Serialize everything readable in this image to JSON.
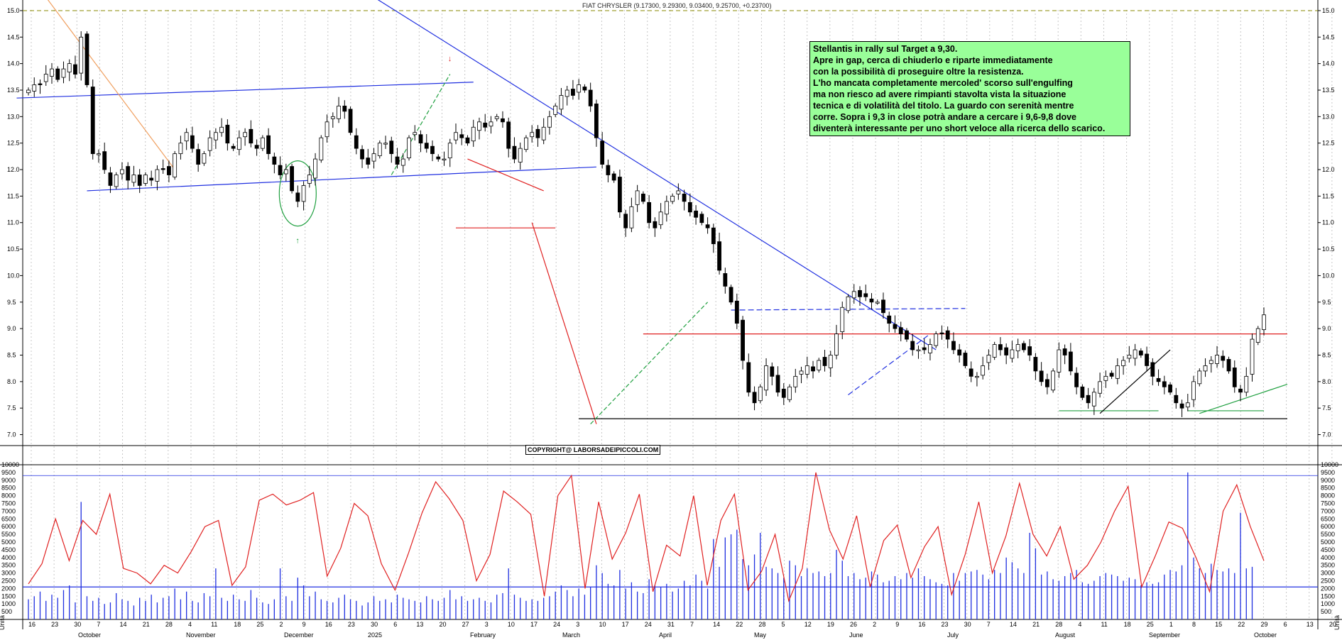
{
  "chart_data": {
    "type": "candlestick",
    "title": "FIAT CHRYSLER (9.17300, 9.29300, 9.03400, 9.25700, +0.23700)",
    "instrument": "FIAT CHRYSLER",
    "last_bar": {
      "open": 9.173,
      "high": 9.293,
      "low": 9.034,
      "close": 9.257,
      "change": 0.237
    },
    "price_axis": {
      "ylim": [
        6.9,
        15.2
      ],
      "ticks": [
        "7.0",
        "7.5",
        "8.0",
        "8.5",
        "9.0",
        "9.5",
        "10.0",
        "10.5",
        "11.0",
        "11.5",
        "12.0",
        "12.5",
        "13.0",
        "13.5",
        "14.0",
        "14.5",
        "15.0"
      ]
    },
    "volume_axis": {
      "ylim": [
        0,
        10000
      ],
      "ticks": [
        "500",
        "1000",
        "1500",
        "2000",
        "2500",
        "3000",
        "3500",
        "4000",
        "4500",
        "5000",
        "5500",
        "6000",
        "6500",
        "7000",
        "7500",
        "8000",
        "8500",
        "9000",
        "9500",
        "10000"
      ],
      "unit_label": "Unità"
    },
    "x_axis": {
      "day_ticks": [
        "16",
        "23",
        "30",
        "7",
        "14",
        "21",
        "28",
        "4",
        "11",
        "18",
        "25",
        "2",
        "9",
        "16",
        "23",
        "30",
        "6",
        "13",
        "20",
        "27",
        "3",
        "10",
        "17",
        "24",
        "3",
        "10",
        "17",
        "24",
        "31",
        "7",
        "14",
        "22",
        "28",
        "5",
        "12",
        "19",
        "26",
        "2",
        "9",
        "16",
        "23",
        "30",
        "7",
        "14",
        "21",
        "28",
        "4",
        "11",
        "18",
        "25",
        "1",
        "8",
        "15",
        "22",
        "29",
        "6",
        "13",
        "20"
      ],
      "month_labels": [
        "October",
        "November",
        "December",
        "2025",
        "February",
        "March",
        "April",
        "May",
        "June",
        "July",
        "August",
        "September",
        "October"
      ]
    },
    "price_series": [
      13.5,
      13.6,
      13.6,
      13.8,
      13.9,
      13.7,
      13.9,
      14.0,
      13.8,
      14.5,
      13.6,
      12.3,
      12.3,
      12.0,
      11.7,
      11.9,
      12.0,
      11.8,
      11.9,
      11.7,
      11.9,
      11.8,
      12.0,
      12.0,
      11.9,
      12.3,
      12.5,
      12.7,
      12.4,
      12.1,
      12.3,
      12.6,
      12.7,
      12.8,
      12.5,
      12.4,
      12.6,
      12.7,
      12.5,
      12.4,
      12.6,
      12.3,
      12.1,
      11.9,
      12.0,
      11.6,
      11.4,
      11.7,
      11.9,
      12.2,
      12.6,
      12.9,
      13.0,
      13.2,
      13.1,
      12.7,
      12.4,
      12.2,
      12.1,
      12.3,
      12.5,
      12.5,
      12.3,
      12.1,
      12.2,
      12.6,
      12.7,
      12.5,
      12.4,
      12.3,
      12.2,
      12.2,
      12.5,
      12.7,
      12.6,
      12.5,
      12.8,
      12.9,
      12.8,
      12.9,
      13.0,
      12.9,
      12.4,
      12.2,
      12.4,
      12.6,
      12.7,
      12.6,
      12.8,
      13.0,
      13.2,
      13.4,
      13.5,
      13.4,
      13.6,
      13.5,
      13.2,
      12.6,
      12.1,
      11.9,
      11.8,
      11.2,
      10.9,
      11.3,
      11.6,
      11.4,
      11.0,
      10.9,
      11.2,
      11.4,
      11.5,
      11.6,
      11.4,
      11.2,
      11.1,
      11.0,
      10.9,
      10.6,
      10.1,
      9.8,
      9.5,
      9.1,
      8.4,
      7.8,
      7.6,
      7.9,
      8.3,
      8.1,
      7.8,
      7.7,
      7.9,
      8.1,
      8.2,
      8.3,
      8.2,
      8.4,
      8.3,
      8.5,
      8.9,
      9.4,
      9.6,
      9.7,
      9.6,
      9.6,
      9.5,
      9.5,
      9.3,
      9.1,
      9.0,
      8.9,
      8.8,
      8.6,
      8.6,
      8.6,
      8.7,
      8.9,
      8.9,
      8.8,
      8.6,
      8.5,
      8.3,
      8.1,
      8.1,
      8.3,
      8.5,
      8.7,
      8.6,
      8.5,
      8.6,
      8.7,
      8.6,
      8.5,
      8.2,
      8.0,
      7.9,
      8.2,
      8.6,
      8.5,
      8.2,
      7.9,
      7.7,
      7.6,
      7.8,
      8.0,
      8.1,
      8.1,
      8.3,
      8.4,
      8.5,
      8.6,
      8.5,
      8.3,
      8.1,
      8.0,
      7.9,
      7.8,
      7.6,
      7.5,
      7.6,
      8.0,
      8.2,
      8.3,
      8.4,
      8.5,
      8.4,
      8.2,
      7.9,
      7.8,
      8.1,
      8.8,
      9.0,
      9.26
    ],
    "volume_series": [
      1300,
      1500,
      1800,
      1200,
      1600,
      1400,
      1900,
      2200,
      1100,
      7600,
      1500,
      1200,
      1400,
      1000,
      1100,
      1700,
      1300,
      1200,
      900,
      1400,
      1200,
      1600,
      1100,
      1400,
      1500,
      2000,
      1300,
      1800,
      1200,
      1100,
      1700,
      1500,
      3300,
      1400,
      1200,
      1600,
      1300,
      1200,
      1900,
      1400,
      1100,
      1000,
      1300,
      3300,
      1500,
      1200,
      2700,
      2200,
      1500,
      1800,
      1300,
      1200,
      1100,
      1400,
      1600,
      1300,
      1200,
      900,
      1100,
      1500,
      1200,
      1300,
      1100,
      1600,
      1400,
      1300,
      1200,
      1100,
      1500,
      1300,
      1200,
      1400,
      1900,
      1300,
      1500,
      1200,
      1300,
      1400,
      1200,
      1100,
      1600,
      1700,
      3300,
      1600,
      1400,
      1200,
      1300,
      1200,
      1400,
      1500,
      1800,
      2200,
      1900,
      1500,
      2000,
      1600,
      2100,
      3500,
      3000,
      2300,
      2200,
      3200,
      2000,
      2400,
      1800,
      1700,
      2600,
      2200,
      2100,
      2300,
      1800,
      2000,
      2500,
      2200,
      2900,
      2500,
      2000,
      5200,
      3400,
      5300,
      5500,
      5800,
      3900,
      3500,
      4200,
      5600,
      3400,
      3300,
      3000,
      2700,
      3800,
      3500,
      2800,
      3300,
      3000,
      3100,
      2800,
      3000,
      4500,
      3800,
      2800,
      3000,
      2600,
      2700,
      3100,
      2900,
      2400,
      2500,
      2800,
      2600,
      3000,
      2700,
      3300,
      2800,
      2600,
      2400,
      2300,
      2200,
      3000,
      2500,
      3000,
      3100,
      3200,
      2900,
      2600,
      3200,
      3000,
      4000,
      3700,
      3300,
      3000,
      5600,
      4600,
      2900,
      3100,
      2600,
      2500,
      2800,
      3000,
      3200,
      2400,
      2300,
      2500,
      2800,
      3000,
      2900,
      2800,
      2500,
      2700,
      2600,
      2200,
      2400,
      2300,
      2400,
      2900,
      3200,
      3100,
      3500,
      9500,
      4000,
      3300,
      3000,
      3600,
      3200,
      3100,
      3300,
      3000,
      6900,
      3300,
      3400
    ],
    "volume_ma": [
      2300,
      3600,
      6500,
      3800,
      6400,
      5500,
      8100,
      3300,
      3000,
      2300,
      3500,
      3000,
      4400,
      6000,
      6400,
      2200,
      3400,
      7700,
      8100,
      7400,
      7700,
      8200,
      2800,
      4600,
      7500,
      6700,
      3600,
      1900,
      4300,
      6900,
      8900,
      7800,
      6400,
      2500,
      4200,
      8300,
      7600,
      6800,
      1500,
      8000,
      9300,
      2000,
      7600,
      3900,
      5600,
      8100,
      1800,
      4800,
      4100,
      8000,
      2200,
      6400,
      8100,
      1900,
      3100,
      5500,
      1200,
      3300,
      9500,
      5800,
      3900,
      6700,
      2100,
      5100,
      6100,
      2700,
      4700,
      6000,
      1600,
      4200,
      7600,
      3000,
      5400,
      8800,
      5500,
      4100,
      6000,
      2600,
      3500,
      5000,
      7000,
      8600,
      2100,
      4100,
      6300,
      5900,
      4000,
      1800,
      7000,
      8700,
      6000,
      3800
    ],
    "annotations": [
      "COPYRIGHT@ LABORSADEIPICCOLI.COM"
    ]
  },
  "note_box": {
    "lines": [
      "Stellantis in rally sul Target a 9,30.",
      "Apre in gap, cerca di chiuderlo e riparte immediatamente",
      "con la possibilità di proseguire oltre la resistenza.",
      "L'ho mancata completamente mercoled' scorso sull'engulfing",
      "ma non riesco ad avere rimpianti stavolta vista la situazione",
      "tecnica e di volatilità del titolo. La guardo con serenità mentre",
      "corre. Sopra i 9,3 in close potrà andare a cercare i 9,6-9,8 dove",
      "diventerà interessante per uno short veloce alla ricerca dello scarico."
    ]
  },
  "colors": {
    "up_candle": "#ffffff",
    "down_candle": "#000000",
    "trend_blue": "#1f2fe0",
    "trend_red": "#e02020",
    "trend_green": "#20a040",
    "volume_bar": "#1f2fe0",
    "volume_ma": "#e02020",
    "target_line": "#8a8a00",
    "note_bg": "#99ff99"
  }
}
